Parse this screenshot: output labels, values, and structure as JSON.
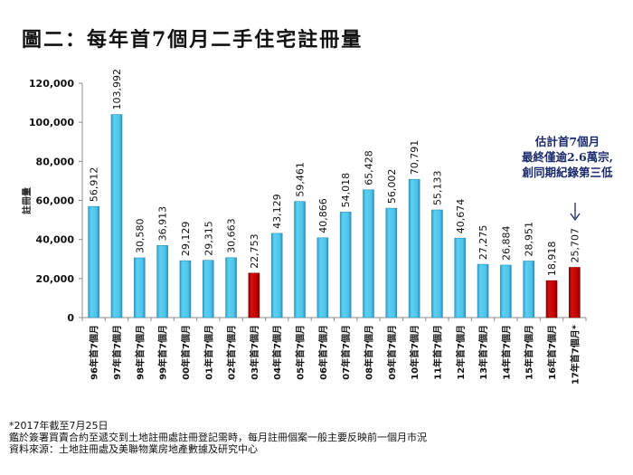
{
  "title": "圖二：每年首7個月二手住宅註冊量",
  "annotation": {
    "lines": [
      "估計首7個月",
      "最終僅逾2.6萬宗,",
      "創同期紀錄第三低"
    ],
    "color": "#1a2a6c"
  },
  "notes": [
    "*2017年截至7月25日",
    "鑑於簽署買賣合約至遞交到土地註冊處註冊登記需時，每月註冊個案一般主要反映前一個月市況",
    "資料來源：土地註冊處及美聯物業房地產數據及研究中心"
  ],
  "chart_data": {
    "type": "bar",
    "title": "圖二：每年首7個月二手住宅註冊量",
    "xlabel": "",
    "ylabel": "註冊量",
    "ylim": [
      0,
      120000
    ],
    "yticks": [
      0,
      20000,
      40000,
      60000,
      80000,
      100000,
      120000
    ],
    "ytick_labels": [
      "0",
      "20,000",
      "40,000",
      "60,000",
      "80,000",
      "100,000",
      "120,000"
    ],
    "grid": false,
    "categories": [
      "96年首7個月",
      "97年首7個月",
      "98年首7個月",
      "99年首7個月",
      "00年首7個月",
      "01年首7個月",
      "02年首7個月",
      "03年首7個月",
      "04年首7個月",
      "05年首7個月",
      "06年首7個月",
      "07年首7個月",
      "08年首7個月",
      "09年首7個月",
      "10年首7個月",
      "11年首7個月",
      "12年首7個月",
      "13年首7個月",
      "14年首7個月",
      "15年首7個月",
      "16年首7個月",
      "17年首7個月*"
    ],
    "values": [
      56912,
      103992,
      30580,
      36913,
      29129,
      29315,
      30663,
      22753,
      43129,
      59461,
      40866,
      54018,
      65428,
      56002,
      70791,
      55133,
      40674,
      27275,
      26884,
      28951,
      18918,
      25707
    ],
    "value_labels": [
      "56,912",
      "103,992",
      "30,580",
      "36,913",
      "29,129",
      "29,315",
      "30,663",
      "22,753",
      "43,129",
      "59,461",
      "40,866",
      "54,018",
      "65,428",
      "56,002",
      "70,791",
      "55,133",
      "40,674",
      "27,275",
      "26,884",
      "28,951",
      "18,918",
      "25,707"
    ],
    "highlight": [
      false,
      false,
      false,
      false,
      false,
      false,
      false,
      true,
      false,
      false,
      false,
      false,
      false,
      false,
      false,
      false,
      false,
      false,
      false,
      false,
      true,
      true
    ],
    "colors": {
      "normal": "#4fc3ea",
      "highlight": "#c00000"
    }
  }
}
